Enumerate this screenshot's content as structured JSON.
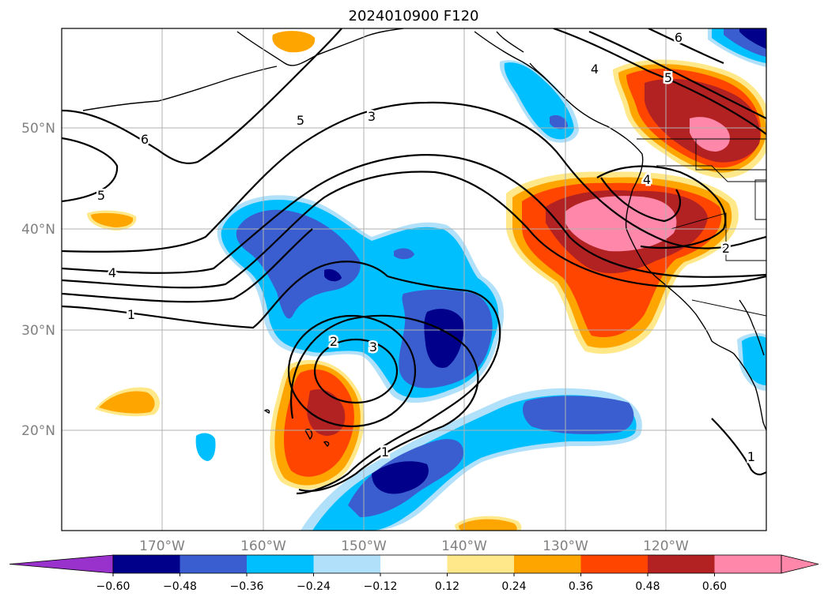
{
  "title": "2024010900 F120",
  "lat_labels": [
    "50°N",
    "40°N",
    "30°N",
    "20°N"
  ],
  "lon_labels": [
    "170°W",
    "160°W",
    "150°W",
    "140°W",
    "130°W",
    "120°W"
  ],
  "colorbar": {
    "extend": "both",
    "under_color": "#9932cc",
    "over_color": "#ff88aa",
    "colors": [
      "#00008b",
      "#3a5ecf",
      "#00bfff",
      "#b0e0fa",
      "#ffffff",
      "#ffe88a",
      "#ffa500",
      "#ff4500",
      "#b22222",
      "#ff88aa"
    ],
    "tick_labels": [
      "−0.60",
      "−0.48",
      "−0.36",
      "−0.24",
      "−0.12",
      "0.12",
      "0.24",
      "0.36",
      "0.48",
      "0.60"
    ]
  },
  "contour_labels": [
    "6",
    "5",
    "3",
    "5",
    "4",
    "1",
    "2",
    "3",
    "1",
    "4",
    "5",
    "6",
    "4",
    "2",
    "1"
  ]
}
